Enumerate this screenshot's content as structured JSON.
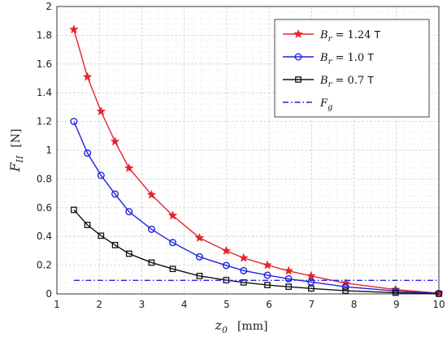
{
  "chart_data": {
    "type": "line",
    "xlabel": {
      "symbol": "z",
      "sub": "0",
      "unit": "[mm]"
    },
    "ylabel": {
      "symbol": "F",
      "sub": "II",
      "unit": "[N]"
    },
    "xlim": [
      1,
      10
    ],
    "ylim": [
      0,
      2
    ],
    "xticks": [
      "1",
      "2",
      "3",
      "4",
      "5",
      "6",
      "7",
      "8",
      "9",
      "10"
    ],
    "yticks": [
      "0",
      "0.2",
      "0.4",
      "0.6",
      "0.8",
      "1",
      "1.2",
      "1.4",
      "1.6",
      "1.8",
      "2"
    ],
    "grid": true,
    "legend_position": "top-right",
    "series": [
      {
        "name": "B_r = 1.24 T",
        "legend": {
          "sym": "B",
          "sub": "r",
          "rest": " = 1.24 ",
          "unit": "T"
        },
        "color": "#e8232a",
        "marker": "star",
        "x": [
          1.4,
          1.72,
          2.04,
          2.37,
          2.7,
          3.23,
          3.73,
          4.36,
          4.99,
          5.4,
          5.96,
          6.46,
          6.99,
          7.8,
          8.98,
          10.0
        ],
        "y": [
          1.84,
          1.51,
          1.27,
          1.06,
          0.875,
          0.69,
          0.545,
          0.39,
          0.3,
          0.25,
          0.2,
          0.16,
          0.125,
          0.075,
          0.03,
          0.005
        ]
      },
      {
        "name": "B_r = 1.0 T",
        "legend": {
          "sym": "B",
          "sub": "r",
          "rest": " = 1.0 ",
          "unit": "T"
        },
        "color": "#2222dd",
        "marker": "circle",
        "x": [
          1.4,
          1.72,
          2.04,
          2.37,
          2.7,
          3.23,
          3.73,
          4.36,
          4.99,
          5.4,
          5.96,
          6.46,
          6.99,
          7.8,
          8.98,
          10.0
        ],
        "y": [
          1.2,
          0.98,
          0.825,
          0.695,
          0.572,
          0.45,
          0.357,
          0.258,
          0.198,
          0.162,
          0.13,
          0.105,
          0.083,
          0.05,
          0.02,
          0.003
        ]
      },
      {
        "name": "B_r = 0.7 T",
        "legend": {
          "sym": "B",
          "sub": "r",
          "rest": " = 0.7 ",
          "unit": "T"
        },
        "color": "#111111",
        "marker": "square",
        "x": [
          1.4,
          1.72,
          2.04,
          2.37,
          2.7,
          3.23,
          3.73,
          4.36,
          4.99,
          5.4,
          5.96,
          6.46,
          6.99,
          7.8,
          8.98,
          10.0
        ],
        "y": [
          0.585,
          0.48,
          0.405,
          0.34,
          0.28,
          0.218,
          0.174,
          0.125,
          0.096,
          0.08,
          0.062,
          0.05,
          0.038,
          0.022,
          0.008,
          0.001
        ]
      },
      {
        "name": "F_g",
        "legend": {
          "sym": "F",
          "sub": "g",
          "rest": "",
          "unit": ""
        },
        "color": "#2222dd",
        "marker": "none",
        "dash": "dashdot",
        "x": [
          1.4,
          10.0
        ],
        "y": [
          0.094,
          0.094
        ]
      }
    ]
  }
}
